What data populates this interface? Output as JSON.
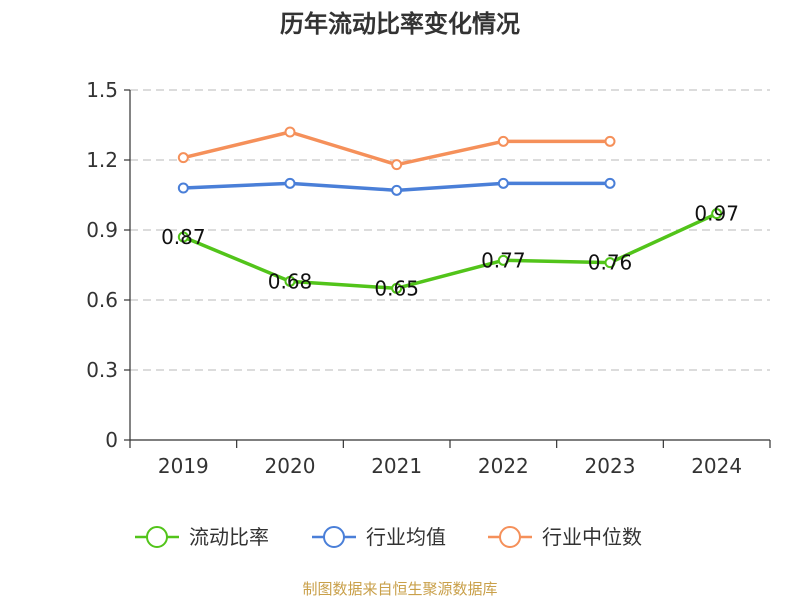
{
  "chart_data": {
    "type": "line",
    "title": "历年流动比率变化情况",
    "categories": [
      "2019",
      "2020",
      "2021",
      "2022",
      "2023",
      "2024"
    ],
    "ylim": [
      0,
      1.5
    ],
    "yticks": [
      "0",
      "0.3",
      "0.6",
      "0.9",
      "1.2",
      "1.5"
    ],
    "grid": true,
    "legend_position": "bottom",
    "series": [
      {
        "name": "流动比率",
        "color": "#52c41a",
        "values": [
          0.87,
          0.68,
          0.65,
          0.77,
          0.76,
          0.97
        ],
        "labels": [
          "0.87",
          "0.68",
          "0.65",
          "0.77",
          "0.76",
          "0.97"
        ]
      },
      {
        "name": "行业均值",
        "color": "#4a7fd8",
        "values": [
          1.08,
          1.1,
          1.07,
          1.1,
          1.1,
          null
        ]
      },
      {
        "name": "行业中位数",
        "color": "#f5905a",
        "values": [
          1.21,
          1.32,
          1.18,
          1.28,
          1.28,
          null
        ]
      }
    ],
    "source": "制图数据来自恒生聚源数据库"
  }
}
